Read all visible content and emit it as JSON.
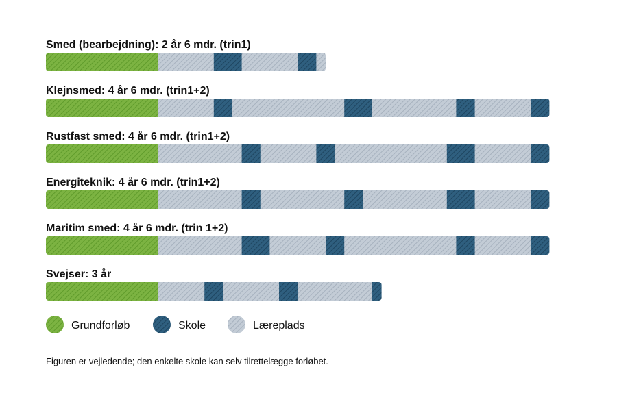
{
  "chart_data": {
    "type": "timeline-bars",
    "unit": "months",
    "legend": [
      {
        "key": "grundforloeb",
        "label": "Grundforløb",
        "color": "#7cb342"
      },
      {
        "key": "skole",
        "label": "Skole",
        "color": "#2f5f7f"
      },
      {
        "key": "laereplads",
        "label": "Læreplads",
        "color": "#b9c3cf"
      }
    ],
    "rows": [
      {
        "title": "Smed (bearbejdning): 2 år 6 mdr. (trin1)",
        "segments": [
          {
            "type": "grundforloeb",
            "months": 12
          },
          {
            "type": "laereplads",
            "months": 6
          },
          {
            "type": "skole",
            "months": 3
          },
          {
            "type": "laereplads",
            "months": 6
          },
          {
            "type": "skole",
            "months": 2
          },
          {
            "type": "laereplads",
            "months": 1
          }
        ]
      },
      {
        "title": "Klejnsmed: 4 år 6 mdr. (trin1+2)",
        "segments": [
          {
            "type": "grundforloeb",
            "months": 12
          },
          {
            "type": "laereplads",
            "months": 6
          },
          {
            "type": "skole",
            "months": 2
          },
          {
            "type": "laereplads",
            "months": 12
          },
          {
            "type": "skole",
            "months": 3
          },
          {
            "type": "laereplads",
            "months": 9
          },
          {
            "type": "skole",
            "months": 2
          },
          {
            "type": "laereplads",
            "months": 6
          },
          {
            "type": "skole",
            "months": 2
          }
        ]
      },
      {
        "title": "Rustfast smed: 4 år 6 mdr. (trin1+2)",
        "segments": [
          {
            "type": "grundforloeb",
            "months": 12
          },
          {
            "type": "laereplads",
            "months": 9
          },
          {
            "type": "skole",
            "months": 2
          },
          {
            "type": "laereplads",
            "months": 6
          },
          {
            "type": "skole",
            "months": 2
          },
          {
            "type": "laereplads",
            "months": 12
          },
          {
            "type": "skole",
            "months": 3
          },
          {
            "type": "laereplads",
            "months": 6
          },
          {
            "type": "skole",
            "months": 2
          }
        ]
      },
      {
        "title": "Energiteknik: 4 år 6 mdr. (trin1+2)",
        "segments": [
          {
            "type": "grundforloeb",
            "months": 12
          },
          {
            "type": "laereplads",
            "months": 9
          },
          {
            "type": "skole",
            "months": 2
          },
          {
            "type": "laereplads",
            "months": 9
          },
          {
            "type": "skole",
            "months": 2
          },
          {
            "type": "laereplads",
            "months": 9
          },
          {
            "type": "skole",
            "months": 3
          },
          {
            "type": "laereplads",
            "months": 6
          },
          {
            "type": "skole",
            "months": 2
          }
        ]
      },
      {
        "title": "Maritim smed: 4 år 6 mdr. (trin 1+2)",
        "segments": [
          {
            "type": "grundforloeb",
            "months": 12
          },
          {
            "type": "laereplads",
            "months": 9
          },
          {
            "type": "skole",
            "months": 3
          },
          {
            "type": "laereplads",
            "months": 6
          },
          {
            "type": "skole",
            "months": 2
          },
          {
            "type": "laereplads",
            "months": 12
          },
          {
            "type": "skole",
            "months": 2
          },
          {
            "type": "laereplads",
            "months": 6
          },
          {
            "type": "skole",
            "months": 2
          }
        ]
      },
      {
        "title": "Svejser: 3 år",
        "segments": [
          {
            "type": "grundforloeb",
            "months": 12
          },
          {
            "type": "laereplads",
            "months": 5
          },
          {
            "type": "skole",
            "months": 2
          },
          {
            "type": "laereplads",
            "months": 6
          },
          {
            "type": "skole",
            "months": 2
          },
          {
            "type": "laereplads",
            "months": 8
          },
          {
            "type": "skole",
            "months": 1
          }
        ]
      }
    ]
  },
  "footnote": "Figuren er vejledende; den enkelte skole kan selv tilrettelægge forløbet."
}
